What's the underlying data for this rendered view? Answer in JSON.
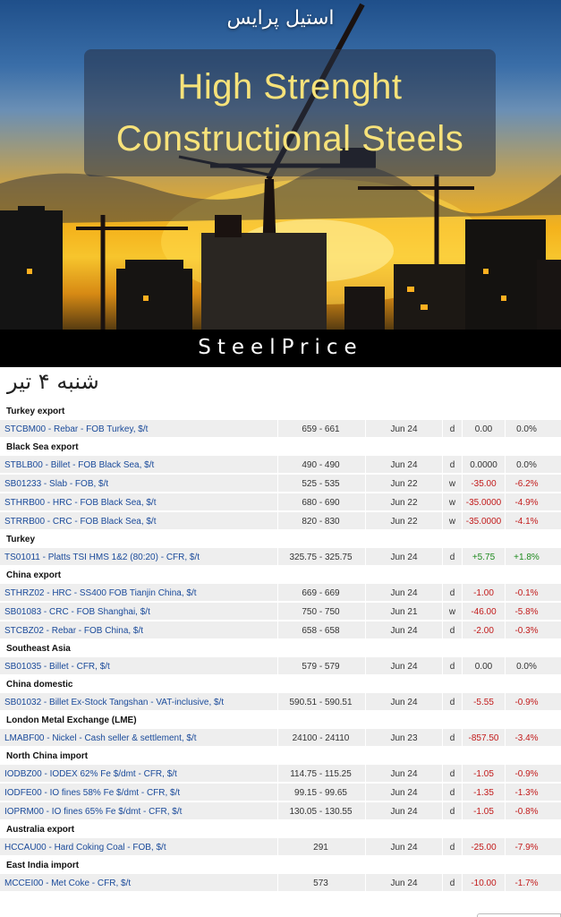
{
  "banner": {
    "persian_title": "استیل پرایس",
    "title_line1": "High Strenght",
    "title_line2": "Constructional Steels",
    "brand": "SteelPrice"
  },
  "date_label": "شنبه ۴ تیر",
  "groups": [
    {
      "name": "Turkey export",
      "rows": [
        {
          "name": "STCBM00 - Rebar - FOB Turkey, $/t",
          "range": "659 - 661",
          "date": "Jun 24",
          "freq": "d",
          "change": "0.00",
          "pct": "0.0%",
          "dir": "zero"
        }
      ]
    },
    {
      "name": "Black Sea export",
      "rows": [
        {
          "name": "STBLB00 - Billet - FOB Black Sea, $/t",
          "range": "490 - 490",
          "date": "Jun 24",
          "freq": "d",
          "change": "0.0000",
          "pct": "0.0%",
          "dir": "zero"
        },
        {
          "name": "SB01233 - Slab - FOB, $/t",
          "range": "525 - 535",
          "date": "Jun 22",
          "freq": "w",
          "change": "-35.00",
          "pct": "-6.2%",
          "dir": "neg"
        },
        {
          "name": "STHRB00 - HRC - FOB Black Sea, $/t",
          "range": "680 - 690",
          "date": "Jun 22",
          "freq": "w",
          "change": "-35.0000",
          "pct": "-4.9%",
          "dir": "neg"
        },
        {
          "name": "STRRB00 - CRC - FOB Black Sea, $/t",
          "range": "820 - 830",
          "date": "Jun 22",
          "freq": "w",
          "change": "-35.0000",
          "pct": "-4.1%",
          "dir": "neg"
        }
      ]
    },
    {
      "name": "Turkey",
      "rows": [
        {
          "name": "TS01011 - Platts TSI HMS 1&2 (80:20) - CFR, $/t",
          "range": "325.75 - 325.75",
          "date": "Jun 24",
          "freq": "d",
          "change": "+5.75",
          "pct": "+1.8%",
          "dir": "pos"
        }
      ]
    },
    {
      "name": "China export",
      "rows": [
        {
          "name": "STHRZ02 - HRC - SS400 FOB Tianjin China, $/t",
          "range": "669 - 669",
          "date": "Jun 24",
          "freq": "d",
          "change": "-1.00",
          "pct": "-0.1%",
          "dir": "neg"
        },
        {
          "name": "SB01083 - CRC - FOB Shanghai, $/t",
          "range": "750 - 750",
          "date": "Jun 21",
          "freq": "w",
          "change": "-46.00",
          "pct": "-5.8%",
          "dir": "neg"
        },
        {
          "name": "STCBZ02 - Rebar - FOB China, $/t",
          "range": "658 - 658",
          "date": "Jun 24",
          "freq": "d",
          "change": "-2.00",
          "pct": "-0.3%",
          "dir": "neg"
        }
      ]
    },
    {
      "name": "Southeast Asia",
      "rows": [
        {
          "name": "SB01035 - Billet - CFR, $/t",
          "range": "579 - 579",
          "date": "Jun 24",
          "freq": "d",
          "change": "0.00",
          "pct": "0.0%",
          "dir": "zero"
        }
      ]
    },
    {
      "name": "China domestic",
      "rows": [
        {
          "name": "SB01032 - Billet Ex-Stock Tangshan - VAT-inclusive, $/t",
          "range": "590.51 - 590.51",
          "date": "Jun 24",
          "freq": "d",
          "change": "-5.55",
          "pct": "-0.9%",
          "dir": "neg"
        }
      ]
    },
    {
      "name": "London Metal Exchange (LME)",
      "rows": [
        {
          "name": "LMABF00 - Nickel - Cash seller & settlement, $/t",
          "range": "24100 - 24110",
          "date": "Jun 23",
          "freq": "d",
          "change": "-857.50",
          "pct": "-3.4%",
          "dir": "neg"
        }
      ]
    },
    {
      "name": "North China import",
      "rows": [
        {
          "name": "IODBZ00 - IODEX 62% Fe $/dmt - CFR, $/t",
          "range": "114.75 - 115.25",
          "date": "Jun 24",
          "freq": "d",
          "change": "-1.05",
          "pct": "-0.9%",
          "dir": "neg"
        },
        {
          "name": "IODFE00 - IO fines 58% Fe $/dmt - CFR, $/t",
          "range": "99.15 - 99.65",
          "date": "Jun 24",
          "freq": "d",
          "change": "-1.35",
          "pct": "-1.3%",
          "dir": "neg"
        },
        {
          "name": "IOPRM00 - IO fines 65% Fe $/dmt - CFR, $/t",
          "range": "130.05 - 130.55",
          "date": "Jun 24",
          "freq": "d",
          "change": "-1.05",
          "pct": "-0.8%",
          "dir": "neg"
        }
      ]
    },
    {
      "name": "Australia export",
      "rows": [
        {
          "name": "HCCAU00 - Hard Coking Coal - FOB, $/t",
          "range": "291",
          "date": "Jun 24",
          "freq": "d",
          "change": "-25.00",
          "pct": "-7.9%",
          "dir": "neg"
        }
      ]
    },
    {
      "name": "East India import",
      "rows": [
        {
          "name": "MCCEI00 - Met Coke - CFR, $/t",
          "range": "573",
          "date": "Jun 24",
          "freq": "d",
          "change": "-10.00",
          "pct": "-1.7%",
          "dir": "neg"
        }
      ]
    }
  ]
}
